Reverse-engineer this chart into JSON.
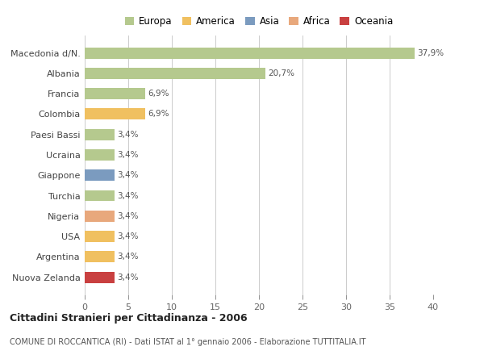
{
  "countries": [
    "Macedonia d/N.",
    "Albania",
    "Francia",
    "Colombia",
    "Paesi Bassi",
    "Ucraina",
    "Giappone",
    "Turchia",
    "Nigeria",
    "USA",
    "Argentina",
    "Nuova Zelanda"
  ],
  "values": [
    37.9,
    20.7,
    6.9,
    6.9,
    3.4,
    3.4,
    3.4,
    3.4,
    3.4,
    3.4,
    3.4,
    3.4
  ],
  "labels": [
    "37,9%",
    "20,7%",
    "6,9%",
    "6,9%",
    "3,4%",
    "3,4%",
    "3,4%",
    "3,4%",
    "3,4%",
    "3,4%",
    "3,4%",
    "3,4%"
  ],
  "colors": [
    "#b5c98e",
    "#b5c98e",
    "#b5c98e",
    "#f0c060",
    "#b5c98e",
    "#b5c98e",
    "#7b9bbf",
    "#b5c98e",
    "#e8a87c",
    "#f0c060",
    "#f0c060",
    "#c94040"
  ],
  "continent_colors": {
    "Europa": "#b5c98e",
    "America": "#f0c060",
    "Asia": "#7b9bbf",
    "Africa": "#e8a87c",
    "Oceania": "#c94040"
  },
  "xlim": [
    0,
    40
  ],
  "xticks": [
    0,
    5,
    10,
    15,
    20,
    25,
    30,
    35,
    40
  ],
  "title": "Cittadini Stranieri per Cittadinanza - 2006",
  "subtitle": "COMUNE DI ROCCANTICA (RI) - Dati ISTAT al 1° gennaio 2006 - Elaborazione TUTTITALIA.IT",
  "bg_color": "#ffffff",
  "grid_color": "#cccccc",
  "bar_height": 0.55
}
